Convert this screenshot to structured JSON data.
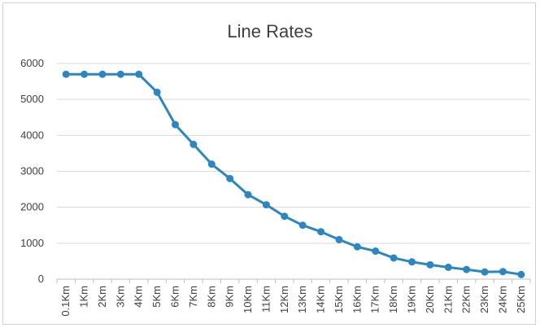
{
  "chart_data": {
    "type": "line",
    "title": "Line Rates",
    "xlabel": "",
    "ylabel": "",
    "ylim": [
      0,
      6000
    ],
    "yticks": [
      0,
      1000,
      2000,
      3000,
      4000,
      5000,
      6000
    ],
    "grid": true,
    "legend": "none",
    "categories": [
      "0.1Km",
      "1Km",
      "2Km",
      "3Km",
      "4Km",
      "5Km",
      "6Km",
      "7Km",
      "8Km",
      "9Km",
      "10Km",
      "11Km",
      "12Km",
      "13Km",
      "14Km",
      "15Km",
      "16Km",
      "17Km",
      "18Km",
      "19Km",
      "20Km",
      "21Km",
      "22Km",
      "23Km",
      "24Km",
      "25Km"
    ],
    "series": [
      {
        "color": "#2e86c1",
        "values": [
          5700,
          5700,
          5700,
          5700,
          5700,
          5200,
          4300,
          3750,
          3200,
          2800,
          2350,
          2070,
          1750,
          1500,
          1320,
          1100,
          900,
          780,
          590,
          480,
          400,
          330,
          270,
          200,
          210,
          130
        ]
      }
    ]
  }
}
